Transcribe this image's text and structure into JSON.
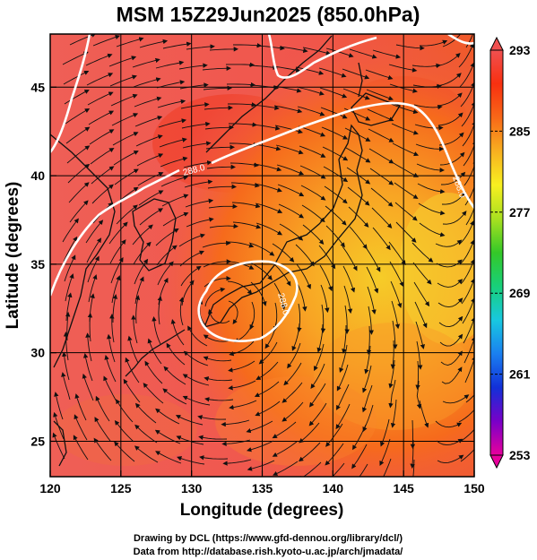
{
  "title": "MSM 15Z29Jun2025 (850.0hPa)",
  "x_axis": {
    "label": "Longitude (degrees)",
    "range": [
      120,
      150
    ],
    "ticks": [
      "120",
      "125",
      "130",
      "135",
      "140",
      "145",
      "150"
    ]
  },
  "y_axis": {
    "label": "Latitude  (degrees)",
    "range": [
      23,
      48
    ],
    "ticks": [
      "25",
      "30",
      "35",
      "40",
      "45"
    ]
  },
  "colorbar": {
    "range": [
      253,
      293
    ],
    "labels": [
      "293",
      "285",
      "277",
      "269",
      "261",
      "253"
    ],
    "colors": [
      "#e8009c",
      "#7a00c8",
      "#1230d8",
      "#1a7ff0",
      "#18c8e0",
      "#18d07a",
      "#34c828",
      "#a8e020",
      "#f8f020",
      "#f8b020",
      "#f86818",
      "#f83010",
      "#f05050"
    ]
  },
  "contours": [
    {
      "label": "288.0"
    },
    {
      "label": "288.0"
    },
    {
      "label": "288.0"
    }
  ],
  "credits": {
    "line1": "Drawing by DCL (https://www.gfd-dennou.org/library/dcl/)",
    "line2": "Data from http://database.rish.kyoto-u.ac.jp/arch/jmadata/"
  },
  "colors": {
    "warm": "#f05a50",
    "hot": "#f03818",
    "mid": "#f88c1c",
    "cool": "#f8c820"
  }
}
